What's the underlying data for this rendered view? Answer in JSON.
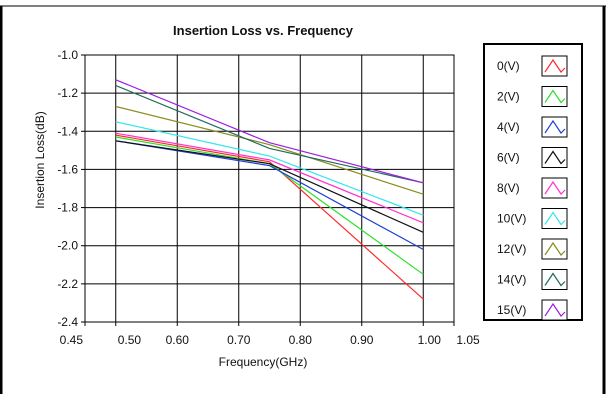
{
  "chart_data": {
    "type": "line",
    "title": "Insertion Loss vs. Frequency",
    "xlabel": "Frequency(GHz)",
    "ylabel": "Insertion Loss(dB)",
    "xlim": [
      0.45,
      1.05
    ],
    "ylim": [
      -2.4,
      -1.0
    ],
    "x_ticks": [
      "0.45",
      "0.50",
      "0.60",
      "0.70",
      "0.80",
      "0.90",
      "1.00",
      "1.05"
    ],
    "x_tick_values": [
      0.45,
      0.5,
      0.6,
      0.7,
      0.8,
      0.9,
      1.0,
      1.05
    ],
    "y_ticks": [
      "-1.0",
      "-1.2",
      "-1.4",
      "-1.6",
      "-1.8",
      "-2.0",
      "-2.2",
      "-2.4"
    ],
    "y_tick_values": [
      -1.0,
      -1.2,
      -1.4,
      -1.6,
      -1.8,
      -2.0,
      -2.2,
      -2.4
    ],
    "grid": true,
    "legend_position": "right",
    "x": [
      0.5,
      0.75,
      1.0
    ],
    "series": [
      {
        "name": "0(V)",
        "color": "#ff2a2a",
        "values": [
          -1.42,
          -1.56,
          -2.28
        ]
      },
      {
        "name": "2(V)",
        "color": "#2ee02e",
        "values": [
          -1.43,
          -1.57,
          -2.15
        ]
      },
      {
        "name": "4(V)",
        "color": "#1f3fd6",
        "values": [
          -1.45,
          -1.58,
          -2.02
        ]
      },
      {
        "name": "6(V)",
        "color": "#111111",
        "values": [
          -1.45,
          -1.57,
          -1.93
        ]
      },
      {
        "name": "8(V)",
        "color": "#ff33cc",
        "values": [
          -1.41,
          -1.55,
          -1.88
        ]
      },
      {
        "name": "10(V)",
        "color": "#33e6ee",
        "values": [
          -1.35,
          -1.53,
          -1.84
        ]
      },
      {
        "name": "12(V)",
        "color": "#8a8a1e",
        "values": [
          -1.27,
          -1.47,
          -1.73
        ]
      },
      {
        "name": "14(V)",
        "color": "#1f6b5a",
        "values": [
          -1.16,
          -1.49,
          -1.67
        ]
      },
      {
        "name": "15(V)",
        "color": "#9a22e0",
        "values": [
          -1.13,
          -1.46,
          -1.67
        ]
      }
    ]
  }
}
